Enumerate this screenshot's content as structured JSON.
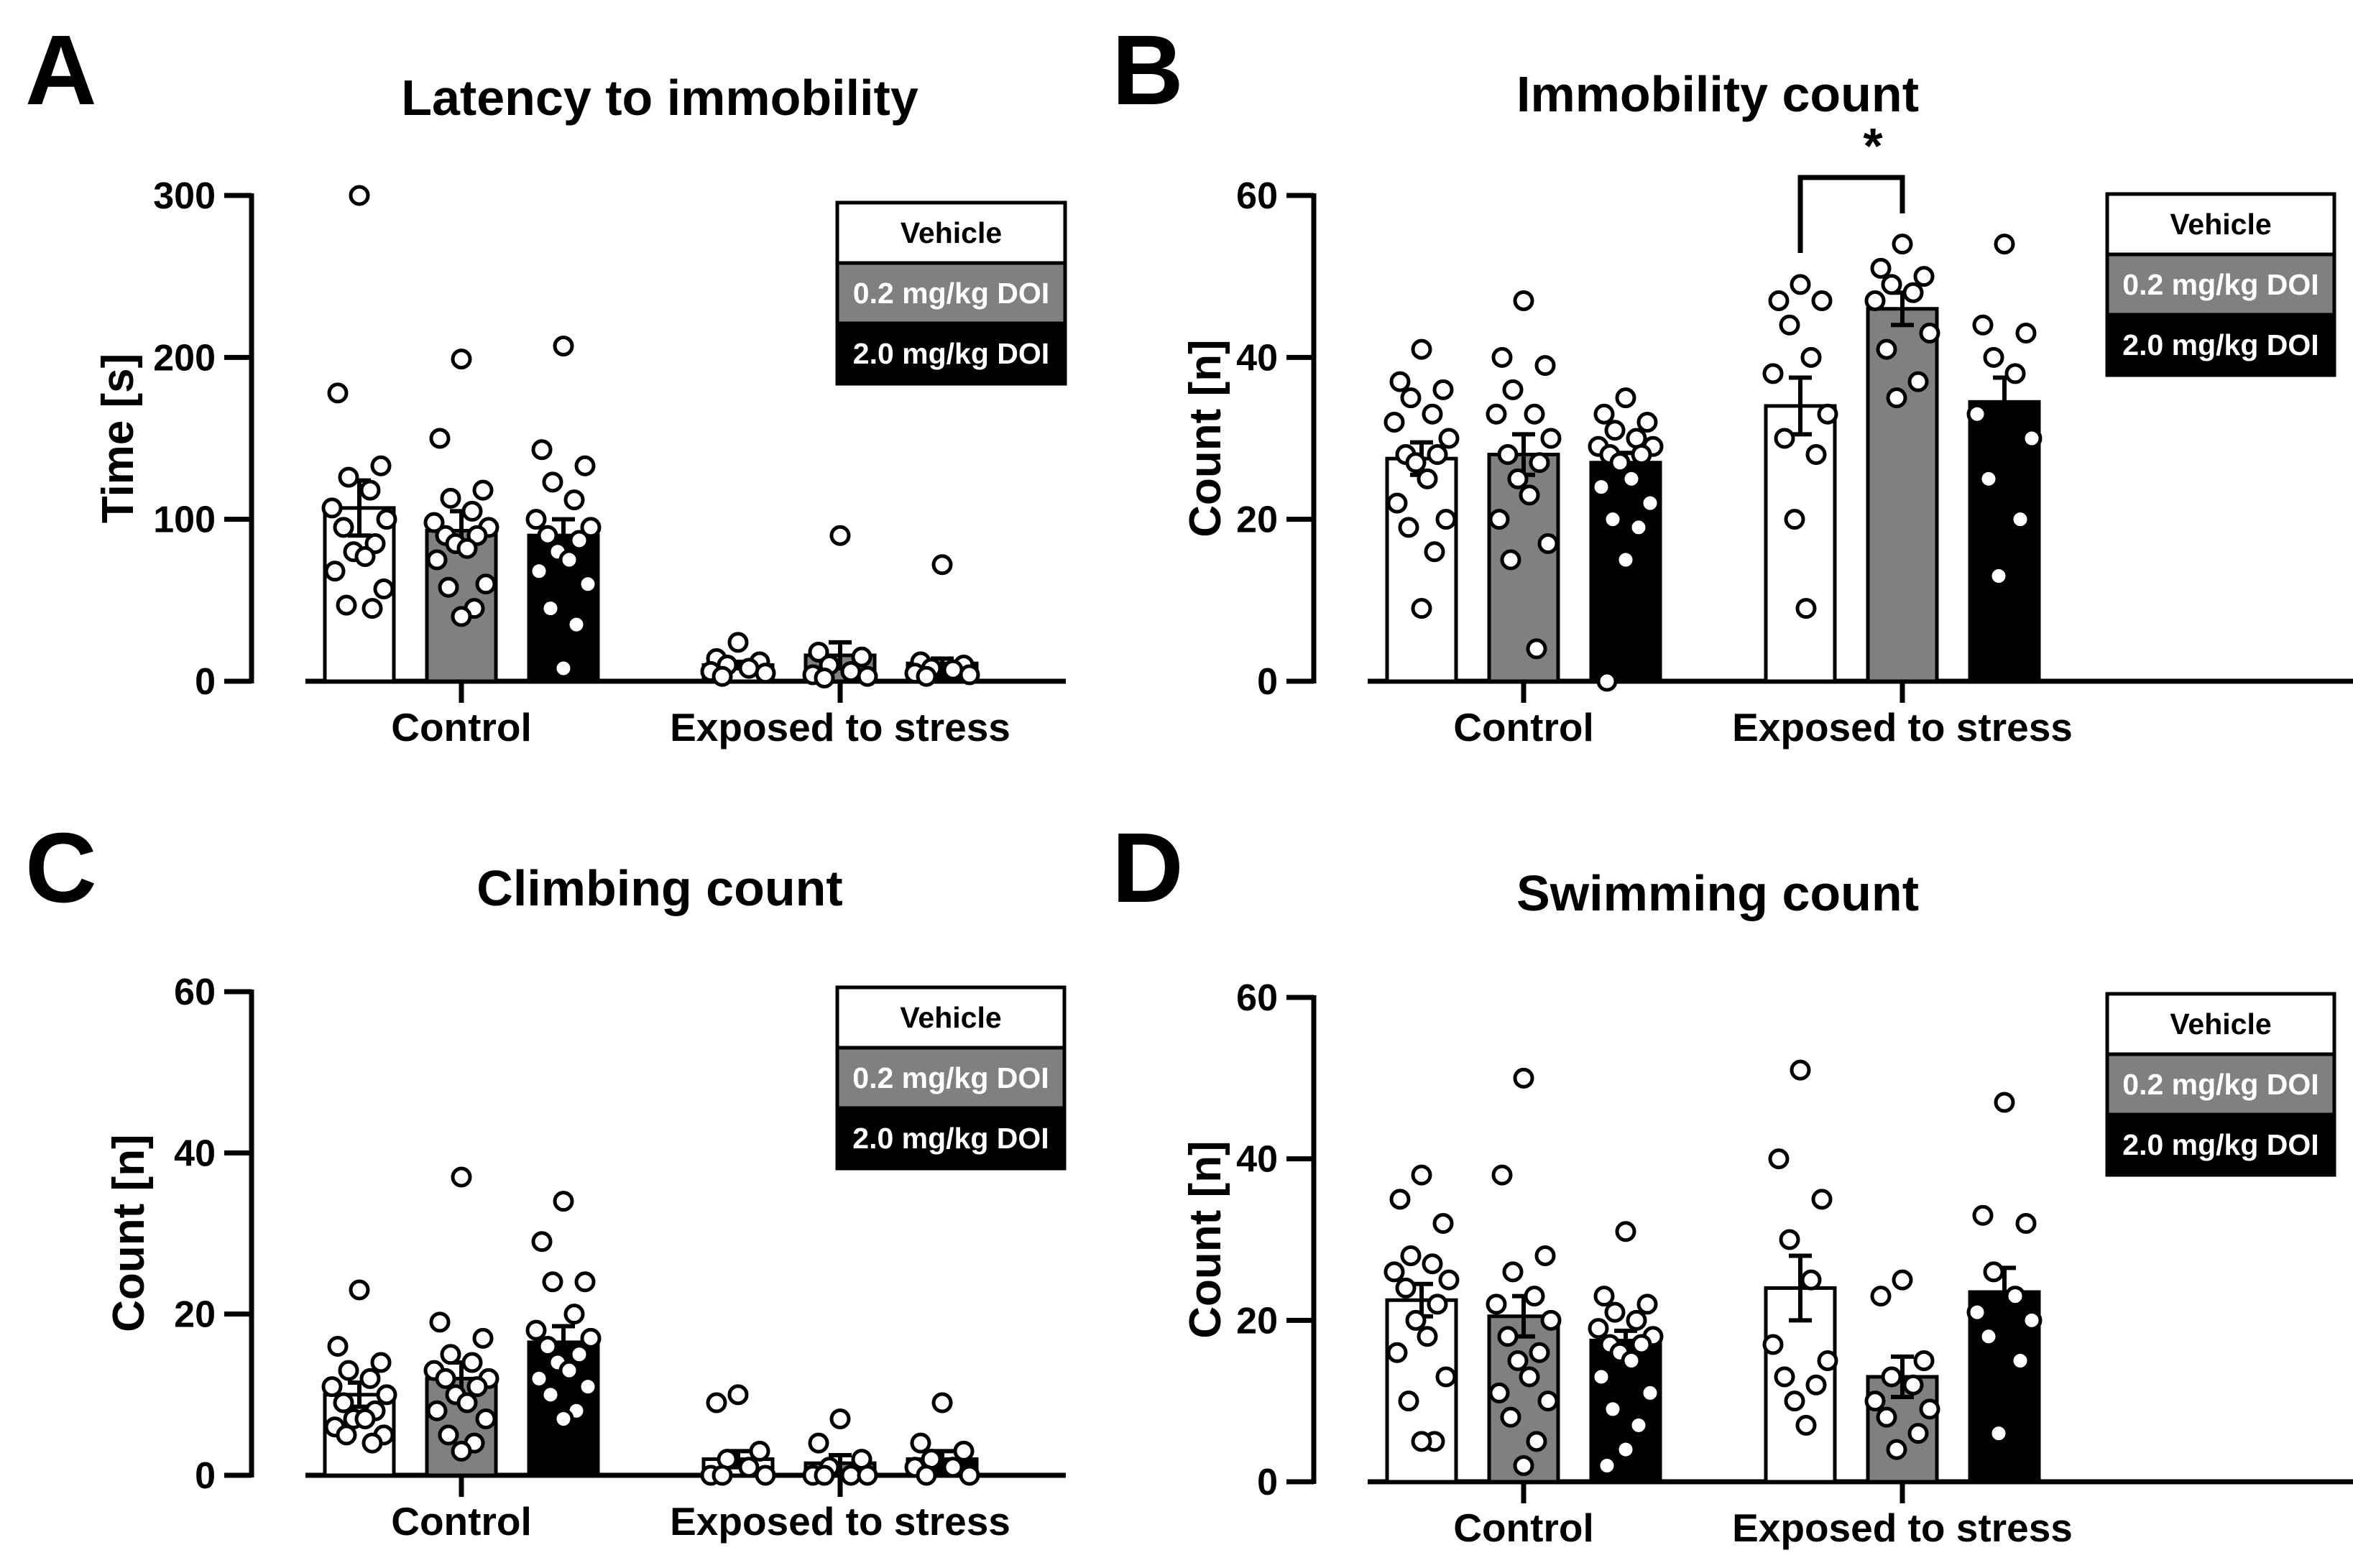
{
  "chart_data": [
    {
      "panel": "A",
      "type": "bar",
      "title": "Latency to immobility",
      "xlabel": "",
      "ylabel": "Time [s]",
      "ylim": [
        0,
        300
      ],
      "yticks": [
        0,
        100,
        200,
        300
      ],
      "categories": [
        "Control",
        "Exposed to stress"
      ],
      "legend": [
        "Vehicle",
        "0.2 mg/kg DOI",
        "2.0 mg/kg DOI"
      ],
      "legend_position": "top-right",
      "series": [
        {
          "name": "Vehicle",
          "color": "#ffffff",
          "values": [
            107,
            10
          ],
          "errors": [
            17,
            2
          ],
          "points": [
            [
              300,
              178,
              133,
              126,
              118,
              107,
              100,
              95,
              85,
              80,
              77,
              68,
              57,
              47,
              45
            ],
            [
              24,
              14,
              12,
              10,
              8,
              6,
              5,
              3
            ]
          ]
        },
        {
          "name": "0.2 mg/kg DOI",
          "color": "#808080",
          "values": [
            93,
            16
          ],
          "errors": [
            12,
            8
          ],
          "points": [
            [
              199,
              150,
              118,
              113,
              105,
              98,
              95,
              90,
              90,
              85,
              82,
              75,
              60,
              58,
              45,
              40
            ],
            [
              90,
              18,
              15,
              10,
              6,
              4,
              3,
              2
            ]
          ]
        },
        {
          "name": "2.0 mg/kg DOI",
          "color": "#000000",
          "values": [
            90,
            11
          ],
          "errors": [
            10,
            3
          ],
          "points": [
            [
              207,
              143,
              133,
              123,
              112,
              100,
              95,
              90,
              87,
              80,
              75,
              68,
              60,
              45,
              35,
              8
            ],
            [
              72,
              12,
              10,
              8,
              7,
              5,
              4,
              3
            ]
          ]
        }
      ],
      "significance": []
    },
    {
      "panel": "B",
      "type": "bar",
      "title": "Immobility count",
      "xlabel": "",
      "ylabel": "Count [n]",
      "ylim": [
        0,
        60
      ],
      "yticks": [
        0,
        20,
        40,
        60
      ],
      "categories": [
        "Control",
        "Exposed to stress"
      ],
      "legend": [
        "Vehicle",
        "0.2 mg/kg DOI",
        "2.0 mg/kg DOI"
      ],
      "legend_position": "top-right",
      "series": [
        {
          "name": "Vehicle",
          "color": "#ffffff",
          "values": [
            27.5,
            34
          ],
          "errors": [
            2,
            3.5
          ],
          "points": [
            [
              41,
              37,
              36,
              35,
              33,
              32,
              30,
              28,
              28,
              27,
              25,
              22,
              20,
              19,
              16,
              9
            ],
            [
              49,
              47,
              47,
              44,
              40,
              38,
              33,
              30,
              28,
              20,
              9
            ]
          ]
        },
        {
          "name": "0.2 mg/kg DOI",
          "color": "#808080",
          "values": [
            28,
            46
          ],
          "errors": [
            2.5,
            2
          ],
          "points": [
            [
              47,
              40,
              39,
              36,
              33,
              33,
              30,
              28,
              27,
              25,
              23,
              20,
              17,
              15,
              4
            ],
            [
              54,
              51,
              50,
              49,
              48,
              47,
              43,
              41,
              37,
              35
            ]
          ]
        },
        {
          "name": "2.0 mg/kg DOI",
          "color": "#000000",
          "values": [
            27,
            34.5
          ],
          "errors": [
            1.2,
            3
          ],
          "points": [
            [
              35,
              33,
              32,
              31,
              30,
              29,
              29,
              28,
              28,
              27,
              25,
              24,
              22,
              20,
              19,
              15,
              0
            ],
            [
              54,
              44,
              43,
              40,
              38,
              33,
              30,
              25,
              20,
              13
            ]
          ]
        }
      ],
      "significance": [
        {
          "group": "Exposed to stress",
          "between": [
            "Vehicle",
            "0.2 mg/kg DOI"
          ],
          "label": "*"
        }
      ]
    },
    {
      "panel": "C",
      "type": "bar",
      "title": "Climbing count",
      "xlabel": "",
      "ylabel": "Count [n]",
      "ylim": [
        0,
        60
      ],
      "yticks": [
        0,
        20,
        40,
        60
      ],
      "categories": [
        "Control",
        "Exposed to stress"
      ],
      "legend": [
        "Vehicle",
        "0.2 mg/kg DOI",
        "2.0 mg/kg DOI"
      ],
      "legend_position": "top-right",
      "series": [
        {
          "name": "Vehicle",
          "color": "#ffffff",
          "values": [
            10,
            2
          ],
          "errors": [
            1.5,
            1
          ],
          "points": [
            [
              23,
              16,
              14,
              13,
              12,
              11,
              10,
              9,
              8,
              7,
              7,
              6,
              5,
              5,
              4
            ],
            [
              10,
              9,
              3,
              2,
              1,
              0,
              0,
              0
            ]
          ]
        },
        {
          "name": "0.2 mg/kg DOI",
          "color": "#808080",
          "values": [
            12,
            1.5
          ],
          "errors": [
            2,
            1
          ],
          "points": [
            [
              37,
              19,
              17,
              15,
              14,
              13,
              12,
              12,
              11,
              10,
              9,
              8,
              7,
              5,
              4,
              3
            ],
            [
              7,
              4,
              2,
              1,
              0,
              0,
              0,
              0
            ]
          ]
        },
        {
          "name": "2.0 mg/kg DOI",
          "color": "#000000",
          "values": [
            16.5,
            2
          ],
          "errors": [
            2,
            1
          ],
          "points": [
            [
              34,
              29,
              24,
              24,
              20,
              18,
              17,
              16,
              15,
              14,
              13,
              12,
              11,
              10,
              8,
              7
            ],
            [
              9,
              4,
              3,
              2,
              1,
              1,
              0,
              0
            ]
          ]
        }
      ],
      "significance": []
    },
    {
      "panel": "D",
      "type": "bar",
      "title": "Swimming count",
      "xlabel": "",
      "ylabel": "Count [n]",
      "ylim": [
        0,
        60
      ],
      "yticks": [
        0,
        20,
        40,
        60
      ],
      "categories": [
        "Control",
        "Exposed to stress"
      ],
      "legend": [
        "Vehicle",
        "0.2 mg/kg DOI",
        "2.0 mg/kg DOI"
      ],
      "legend_position": "top-right",
      "series": [
        {
          "name": "Vehicle",
          "color": "#ffffff",
          "values": [
            22.5,
            24
          ],
          "errors": [
            2,
            4
          ],
          "points": [
            [
              38,
              35,
              32,
              28,
              27,
              26,
              25,
              24,
              22,
              20,
              18,
              16,
              13,
              10,
              5,
              5
            ],
            [
              51,
              40,
              35,
              30,
              25,
              17,
              15,
              13,
              12,
              10,
              7
            ]
          ]
        },
        {
          "name": "0.2 mg/kg DOI",
          "color": "#808080",
          "values": [
            20.5,
            13
          ],
          "errors": [
            2.5,
            2.5
          ],
          "points": [
            [
              50,
              38,
              28,
              26,
              23,
              22,
              20,
              18,
              16,
              15,
              13,
              11,
              10,
              8,
              5,
              2
            ],
            [
              25,
              23,
              15,
              13,
              12,
              10,
              9,
              8,
              6,
              4
            ]
          ]
        },
        {
          "name": "2.0 mg/kg DOI",
          "color": "#000000",
          "values": [
            17.5,
            23.5
          ],
          "errors": [
            1.2,
            3
          ],
          "points": [
            [
              31,
              23,
              22,
              21,
              20,
              19,
              18,
              17,
              17,
              16,
              15,
              13,
              11,
              9,
              7,
              4,
              2
            ],
            [
              47,
              33,
              32,
              26,
              23,
              21,
              20,
              18,
              15,
              6
            ]
          ]
        }
      ],
      "significance": []
    }
  ]
}
